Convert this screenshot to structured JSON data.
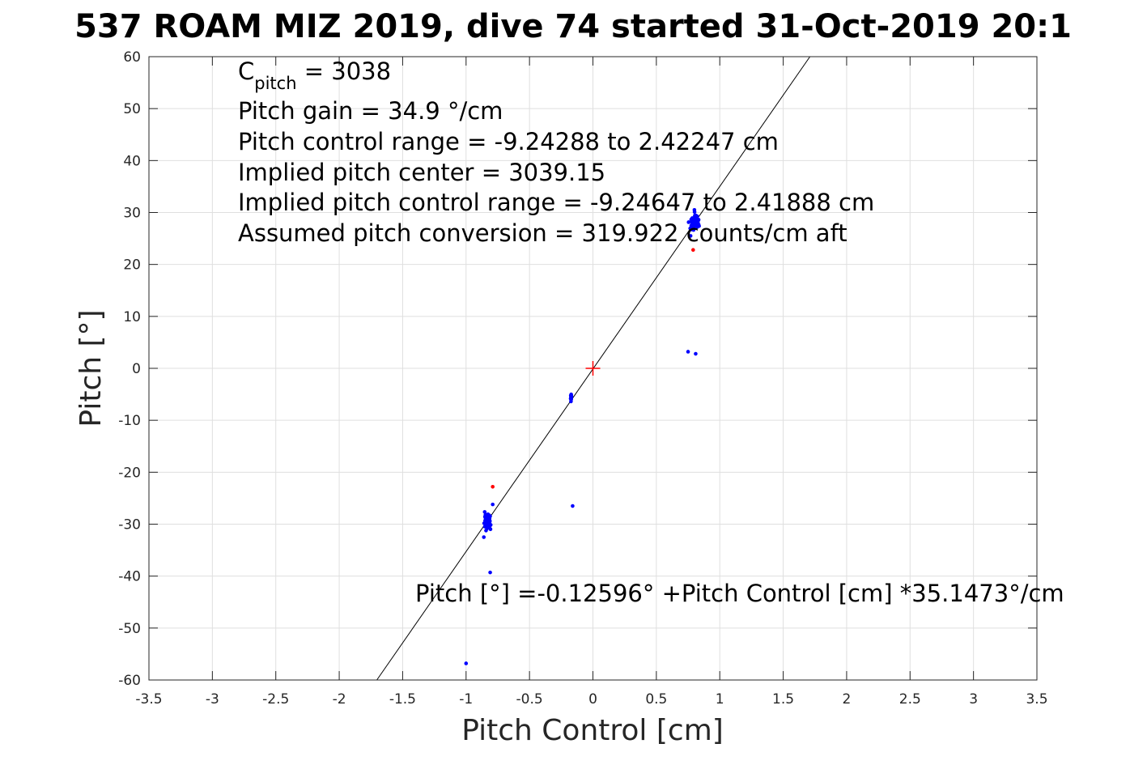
{
  "chart_data": {
    "type": "scatter",
    "title": "537 ROAM MIZ 2019, dive 74 started 31-Oct-2019 20:1",
    "xlabel": "Pitch Control [cm]",
    "ylabel": "Pitch [°]",
    "xlim": [
      -3.5,
      3.5
    ],
    "ylim": [
      -60,
      60
    ],
    "xticks": [
      "-3.5",
      "-3",
      "-2.5",
      "-2",
      "-1.5",
      "-1",
      "-0.5",
      "0",
      "0.5",
      "1",
      "1.5",
      "2",
      "2.5",
      "3",
      "3.5"
    ],
    "yticks": [
      "-60",
      "-50",
      "-40",
      "-30",
      "-20",
      "-10",
      "0",
      "10",
      "20",
      "30",
      "40",
      "50",
      "60"
    ],
    "grid": true,
    "annotations": {
      "c_pitch_symbol": "C",
      "c_pitch_subscript": "pitch",
      "c_pitch_value": " = 3038",
      "lines": [
        "Pitch gain = 34.9 °/cm",
        "Pitch control range = -9.24288 to 2.42247 cm",
        "Implied pitch center = 3039.15",
        "Implied pitch control range = -9.24647 to 2.41888 cm",
        "Assumed pitch conversion = 319.922 counts/cm aft"
      ],
      "fit_equation": "Pitch [°] =-0.12596° +Pitch Control [cm] *35.1473°/cm"
    },
    "fit_line": {
      "intercept": -0.12596,
      "slope": 35.1473,
      "color": "#000000"
    },
    "center_marker": {
      "x": 0,
      "y": 0,
      "color": "#ff0000"
    },
    "series": [
      {
        "color": "#0000ff",
        "clusters": [
          {
            "x_center": 0.8,
            "y_center": 28.0,
            "x_spread": 0.05,
            "y_spread": 2.2,
            "count": 90,
            "seed": 11
          },
          {
            "x_center": -0.83,
            "y_center": -29.5,
            "x_spread": 0.04,
            "y_spread": 2.0,
            "count": 80,
            "seed": 23
          },
          {
            "x_center": -0.17,
            "y_center": -5.7,
            "x_spread": 0.01,
            "y_spread": 0.9,
            "count": 14,
            "seed": 37
          }
        ],
        "points": [
          {
            "x": 0.75,
            "y": 3.2
          },
          {
            "x": 0.81,
            "y": 2.8
          },
          {
            "x": -0.16,
            "y": -26.5
          },
          {
            "x": -0.81,
            "y": -39.3
          },
          {
            "x": -1.0,
            "y": -56.8
          },
          {
            "x": 0.8,
            "y": 30.5
          },
          {
            "x": 0.77,
            "y": 25.5
          },
          {
            "x": -0.79,
            "y": -26.2
          },
          {
            "x": -0.86,
            "y": -32.5
          }
        ]
      },
      {
        "color": "#ff0000",
        "points": [
          {
            "x": 0.79,
            "y": 22.8
          },
          {
            "x": -0.79,
            "y": -22.8
          }
        ]
      }
    ]
  }
}
